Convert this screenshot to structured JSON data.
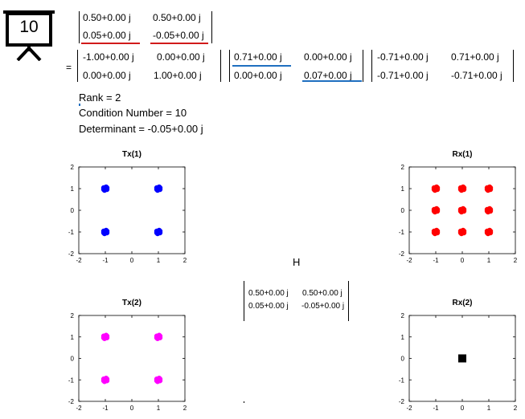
{
  "badge": {
    "number": "10"
  },
  "matrix_H": {
    "rows": [
      [
        "0.50+0.00 j",
        "0.50+0.00 j"
      ],
      [
        "0.05+0.00 j",
        "-0.05+0.00 j"
      ]
    ]
  },
  "svd": {
    "equals": "=",
    "U": {
      "rows": [
        [
          "-1.00+0.00 j",
          "0.00+0.00 j"
        ],
        [
          "0.00+0.00 j",
          "1.00+0.00 j"
        ]
      ]
    },
    "S": {
      "rows": [
        [
          "0.71+0.00 j",
          "0.00+0.00 j"
        ],
        [
          "0.00+0.00 j",
          "0.07+0.00 j"
        ]
      ]
    },
    "V": {
      "rows": [
        [
          "-0.71+0.00 j",
          "0.71+0.00 j"
        ],
        [
          "-0.71+0.00 j",
          "-0.71+0.00 j"
        ]
      ]
    }
  },
  "info": {
    "rank": "Rank = 2",
    "condition": "Condition Number = 10",
    "determinant": "Determinant = -0.05+0.00 j"
  },
  "channel": {
    "label": "H",
    "rows": [
      [
        "0.50+0.00 j",
        "0.50+0.00 j"
      ],
      [
        "0.05+0.00 j",
        "-0.05+0.00 j"
      ]
    ]
  },
  "colors": {
    "tx1": "#0000ff",
    "rx1": "#ff0000",
    "tx2": "#ff00ff",
    "rx2": "#000000",
    "underline_red": "#d11a1a",
    "underline_blue": "#1f6fc0"
  },
  "chart_data": [
    {
      "type": "scatter",
      "title": "Tx(1)",
      "xlim": [
        -2,
        2
      ],
      "ylim": [
        -2,
        2
      ],
      "xticks": [
        "-2",
        "-1",
        "0",
        "1",
        "2"
      ],
      "yticks": [
        "2",
        "1",
        "0",
        "-1",
        "-2"
      ],
      "grid": false,
      "points": [
        [
          -1,
          1
        ],
        [
          1,
          1
        ],
        [
          -1,
          -1
        ],
        [
          1,
          -1
        ]
      ],
      "color": "#0000ff"
    },
    {
      "type": "scatter",
      "title": "Rx(1)",
      "xlim": [
        -2,
        2
      ],
      "ylim": [
        -2,
        2
      ],
      "xticks": [
        "-2",
        "-1",
        "0",
        "1",
        "2"
      ],
      "yticks": [
        "2",
        "1",
        "0",
        "-1",
        "-2"
      ],
      "grid": false,
      "points": [
        [
          -1,
          1
        ],
        [
          0,
          1
        ],
        [
          1,
          1
        ],
        [
          -1,
          0
        ],
        [
          0,
          0
        ],
        [
          1,
          0
        ],
        [
          -1,
          -1
        ],
        [
          0,
          -1
        ],
        [
          1,
          -1
        ]
      ],
      "color": "#ff0000"
    },
    {
      "type": "scatter",
      "title": "Tx(2)",
      "xlim": [
        -2,
        2
      ],
      "ylim": [
        -2,
        2
      ],
      "xticks": [
        "-2",
        "-1",
        "0",
        "1",
        "2"
      ],
      "yticks": [
        "2",
        "1",
        "0",
        "-1",
        "-2"
      ],
      "grid": false,
      "points": [
        [
          -1,
          1
        ],
        [
          1,
          1
        ],
        [
          -1,
          -1
        ],
        [
          1,
          -1
        ]
      ],
      "color": "#ff00ff"
    },
    {
      "type": "scatter",
      "title": "Rx(2)",
      "xlim": [
        -2,
        2
      ],
      "ylim": [
        -2,
        2
      ],
      "xticks": [
        "-2",
        "-1",
        "0",
        "1",
        "2"
      ],
      "yticks": [
        "2",
        "1",
        "0",
        "-1",
        "-2"
      ],
      "grid": false,
      "points": [
        [
          0,
          0
        ]
      ],
      "color": "#000000"
    }
  ]
}
